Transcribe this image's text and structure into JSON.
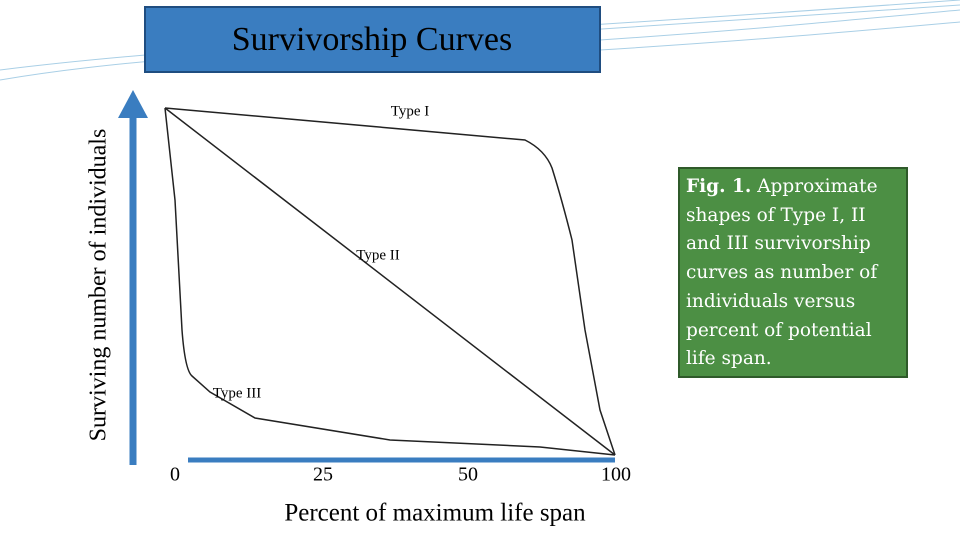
{
  "title": "Survivorship Curves",
  "y_axis_label": "Surviving number of individuals",
  "x_axis_label": "Percent of maximum life span",
  "x_tick_labels": [
    "0",
    "25",
    "50",
    "100"
  ],
  "curve_labels": [
    "Type I",
    "Type II",
    "Type III"
  ],
  "caption": {
    "lead": "Fig. 1.",
    "text": "Approximate shapes of Type I, II and III survivorship curves as number of individuals versus percent of potential life span."
  }
}
